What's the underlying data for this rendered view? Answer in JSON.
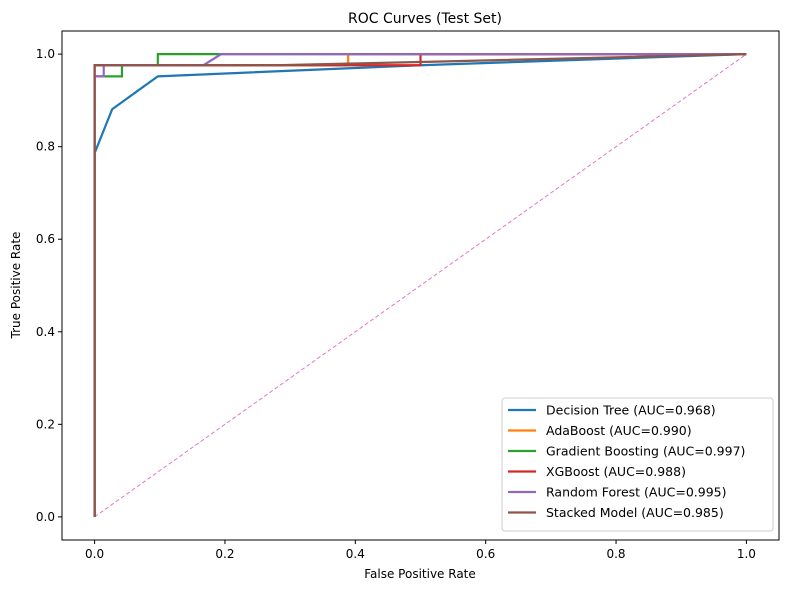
{
  "chart_data": {
    "type": "line",
    "title": "ROC Curves (Test Set)",
    "xlabel": "False Positive Rate",
    "ylabel": "True Positive Rate",
    "xlim": [
      -0.05,
      1.05
    ],
    "ylim": [
      -0.05,
      1.05
    ],
    "xticks": [
      0.0,
      0.2,
      0.4,
      0.6,
      0.8,
      1.0
    ],
    "yticks": [
      0.0,
      0.2,
      0.4,
      0.6,
      0.8,
      1.0
    ],
    "xtick_labels": [
      "0.0",
      "0.2",
      "0.4",
      "0.6",
      "0.8",
      "1.0"
    ],
    "ytick_labels": [
      "0.0",
      "0.2",
      "0.4",
      "0.6",
      "0.8",
      "1.0"
    ],
    "grid": false,
    "legend_position": "lower-right",
    "series": [
      {
        "name": "Decision Tree (AUC=0.968)",
        "color": "#1f77b4",
        "x": [
          0.0,
          0.0,
          0.027,
          0.097,
          0.5,
          1.0
        ],
        "y": [
          0.0,
          0.786,
          0.881,
          0.952,
          0.976,
          1.0
        ]
      },
      {
        "name": "AdaBoost (AUC=0.990)",
        "color": "#ff7f0e",
        "x": [
          0.0,
          0.0,
          0.389,
          0.389,
          1.0
        ],
        "y": [
          0.0,
          0.976,
          0.976,
          1.0,
          1.0
        ]
      },
      {
        "name": "Gradient Boosting (AUC=0.997)",
        "color": "#2ca02c",
        "x": [
          0.0,
          0.0,
          0.042,
          0.042,
          0.097,
          0.097,
          1.0
        ],
        "y": [
          0.0,
          0.952,
          0.952,
          0.976,
          0.976,
          1.0,
          1.0
        ]
      },
      {
        "name": "XGBoost (AUC=0.988)",
        "color": "#d62728",
        "x": [
          0.0,
          0.0,
          0.5,
          0.5,
          1.0
        ],
        "y": [
          0.0,
          0.976,
          0.976,
          1.0,
          1.0
        ]
      },
      {
        "name": "Random Forest (AUC=0.995)",
        "color": "#9467bd",
        "x": [
          0.0,
          0.0,
          0.014,
          0.014,
          0.167,
          0.194,
          1.0
        ],
        "y": [
          0.0,
          0.952,
          0.952,
          0.976,
          0.976,
          1.0,
          1.0
        ]
      },
      {
        "name": "Stacked Model (AUC=0.985)",
        "color": "#8c564b",
        "x": [
          0.0,
          0.0,
          0.278,
          0.5,
          1.0
        ],
        "y": [
          0.0,
          0.976,
          0.976,
          0.983,
          1.0
        ]
      }
    ],
    "reference_line": {
      "color": "#e377c2",
      "style": "dashed",
      "x": [
        0.0,
        1.0
      ],
      "y": [
        0.0,
        1.0
      ]
    }
  }
}
